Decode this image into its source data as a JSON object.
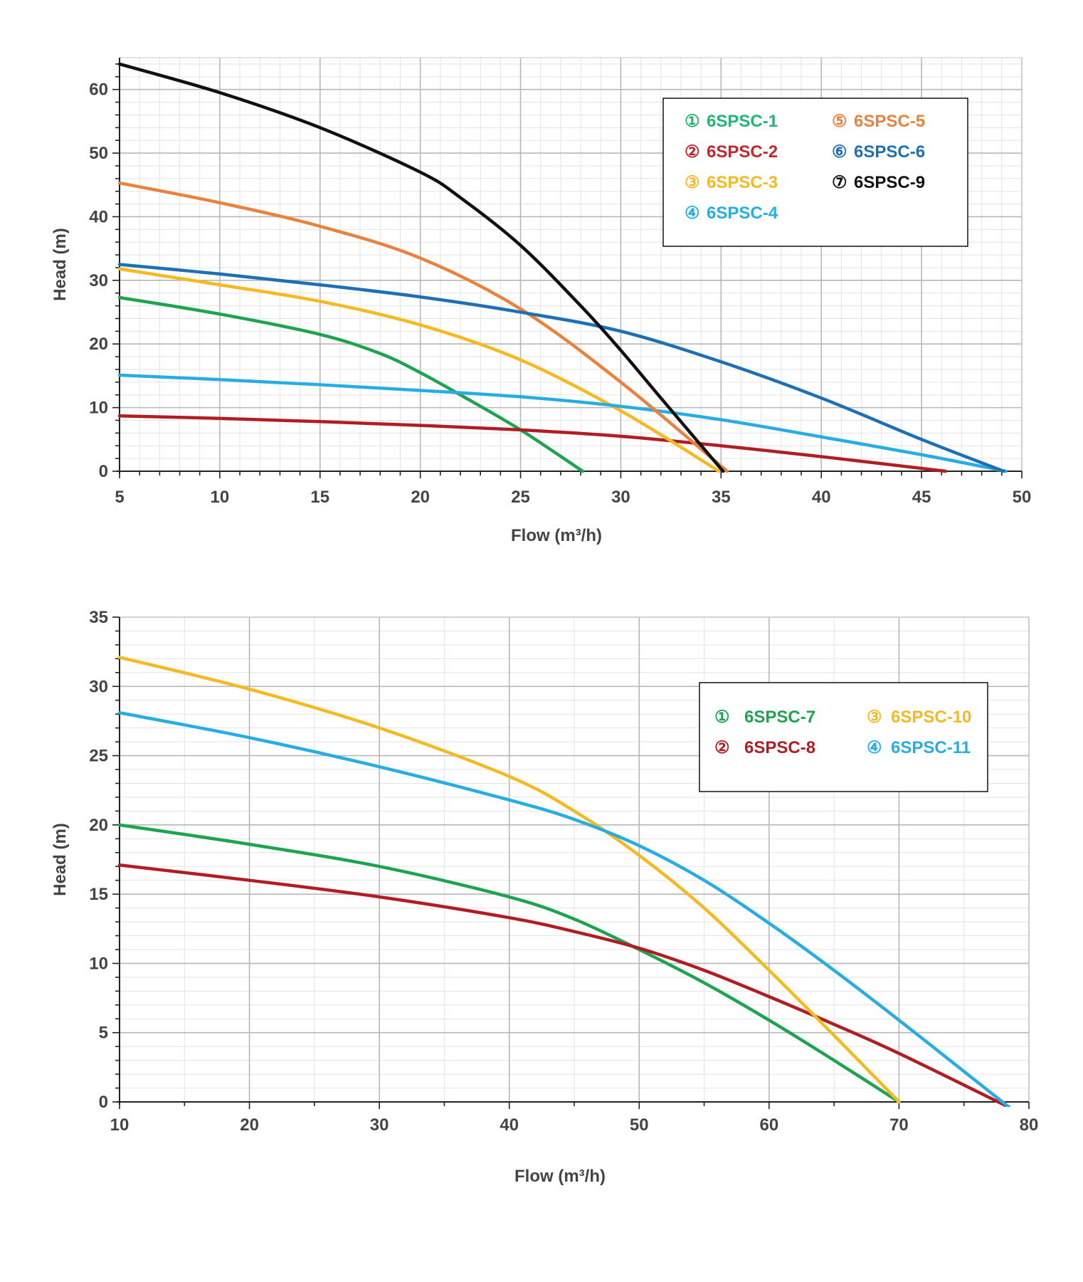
{
  "chart_data": [
    {
      "type": "line",
      "xlabel": "Flow (m³/h)",
      "ylabel": "Head (m)",
      "xlim": [
        5,
        50
      ],
      "ylim": [
        0,
        65
      ],
      "xticks": [
        5,
        10,
        15,
        20,
        25,
        30,
        35,
        40,
        45,
        50
      ],
      "yticks": [
        0,
        10,
        20,
        30,
        40,
        50,
        60
      ],
      "grid": true,
      "legend_position": "top-right",
      "series": [
        {
          "marker": "①",
          "name": "6SPSC-1",
          "color": "#1ea350",
          "legend_color": "#22b573",
          "x": [
            5,
            10,
            15,
            18,
            20,
            22,
            25,
            28.1
          ],
          "y": [
            27.3,
            24.7,
            21.5,
            18.5,
            15.5,
            12,
            6.5,
            0
          ]
        },
        {
          "marker": "②",
          "name": "6SPSC-2",
          "color": "#b01e23",
          "legend_color": "#c1272d",
          "x": [
            5,
            10,
            15,
            20,
            25,
            30,
            35,
            40,
            46.2
          ],
          "y": [
            8.7,
            8.3,
            7.8,
            7.2,
            6.5,
            5.5,
            4.0,
            2.3,
            0
          ]
        },
        {
          "marker": "③",
          "name": "6SPSC-3",
          "color": "#f5b921",
          "legend_color": "#f5b921",
          "x": [
            5,
            10,
            15,
            20,
            25,
            30,
            34.9
          ],
          "y": [
            31.8,
            29.3,
            26.7,
            23.0,
            17.5,
            9.5,
            0
          ]
        },
        {
          "marker": "④",
          "name": "6SPSC-4",
          "color": "#28ade3",
          "legend_color": "#28ade3",
          "x": [
            5,
            10,
            15,
            20,
            25,
            30,
            35,
            40,
            45,
            49.2
          ],
          "y": [
            15.1,
            14.4,
            13.6,
            12.7,
            11.7,
            10.2,
            8.1,
            5.4,
            2.6,
            0
          ]
        },
        {
          "marker": "⑤",
          "name": "6SPSC-5",
          "color": "#e8823e",
          "legend_color": "#e8823e",
          "x": [
            5,
            10,
            15,
            20,
            25,
            30,
            35.3
          ],
          "y": [
            45.3,
            42.2,
            38.5,
            33.5,
            25.5,
            14.0,
            0
          ]
        },
        {
          "marker": "⑥",
          "name": "6SPSC-6",
          "color": "#1f6fb5",
          "legend_color": "#1f6fb5",
          "x": [
            5,
            10,
            15,
            20,
            25,
            30,
            35,
            40,
            45,
            49.1
          ],
          "y": [
            32.5,
            31.0,
            29.3,
            27.4,
            25.0,
            22.0,
            17.2,
            11.5,
            5.0,
            0
          ]
        },
        {
          "marker": "⑦",
          "name": "6SPSC-9",
          "color": "#111111",
          "legend_color": "#111111",
          "x": [
            5,
            10,
            15,
            20,
            22,
            25,
            28,
            30,
            32,
            35.1
          ],
          "y": [
            64.0,
            59.5,
            54.0,
            47.0,
            43.0,
            35.5,
            26.0,
            19.0,
            11.5,
            0
          ]
        }
      ]
    },
    {
      "type": "line",
      "xlabel": "Flow (m³/h)",
      "ylabel": "Head (m)",
      "xlim": [
        10,
        80
      ],
      "ylim": [
        0,
        35
      ],
      "xticks": [
        10,
        20,
        30,
        40,
        50,
        60,
        70,
        80
      ],
      "yticks": [
        0,
        5,
        10,
        15,
        20,
        25,
        30,
        35
      ],
      "grid": true,
      "legend_position": "top-right",
      "series": [
        {
          "marker": "①",
          "name": "6SPSC-7",
          "color": "#1ea350",
          "legend_color": "#1ea350",
          "x": [
            10,
            20,
            30,
            40,
            45,
            50,
            55,
            60,
            65,
            70
          ],
          "y": [
            20.0,
            18.6,
            17.0,
            14.8,
            13.2,
            11.0,
            8.6,
            5.9,
            3.0,
            0
          ]
        },
        {
          "marker": "②",
          "name": "6SPSC-8",
          "color": "#b01e23",
          "legend_color": "#b01e23",
          "x": [
            10,
            20,
            30,
            40,
            45,
            50,
            55,
            60,
            65,
            70,
            78.5
          ],
          "y": [
            17.1,
            16.0,
            14.8,
            13.3,
            12.3,
            11.1,
            9.5,
            7.6,
            5.6,
            3.5,
            -0.4
          ]
        },
        {
          "marker": "③",
          "name": "6SPSC-10",
          "color": "#f5b921",
          "legend_color": "#f5b921",
          "x": [
            10,
            20,
            30,
            40,
            45,
            50,
            55,
            60,
            65,
            70
          ],
          "y": [
            32.1,
            29.8,
            27.0,
            23.5,
            21.0,
            17.8,
            14.0,
            9.5,
            4.8,
            0
          ]
        },
        {
          "marker": "④",
          "name": "6SPSC-11",
          "color": "#28ade3",
          "legend_color": "#28ade3",
          "x": [
            10,
            20,
            30,
            40,
            45,
            50,
            55,
            60,
            65,
            70,
            75,
            78.5
          ],
          "y": [
            28.1,
            26.3,
            24.2,
            21.8,
            20.4,
            18.5,
            16.0,
            12.9,
            9.5,
            5.9,
            2.2,
            -0.4
          ]
        }
      ]
    }
  ]
}
